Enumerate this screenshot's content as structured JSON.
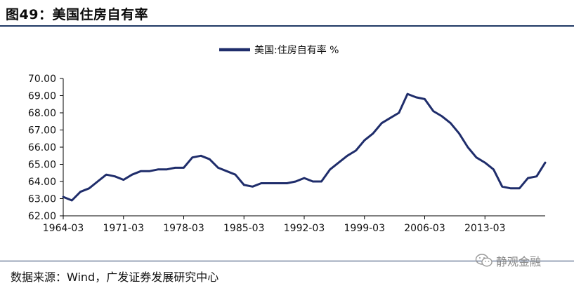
{
  "header": {
    "title": "图49：美国住房自有率"
  },
  "footer": {
    "source": "数据来源：Wind，广发证券发展研究中心",
    "watermark": "静观金融"
  },
  "colors": {
    "series": "#1f2d6b",
    "rule": "#1f3864"
  },
  "chart_data": {
    "type": "line",
    "title": "",
    "xlabel": "",
    "ylabel": "",
    "ylim": [
      62.0,
      70.0
    ],
    "yticks": [
      "62.00",
      "63.00",
      "64.00",
      "65.00",
      "66.00",
      "67.00",
      "68.00",
      "69.00",
      "70.00"
    ],
    "xticks": [
      "1964-03",
      "1971-03",
      "1978-03",
      "1985-03",
      "1992-03",
      "1999-03",
      "2006-03",
      "2013-03"
    ],
    "grid": false,
    "legend_position": "top-center",
    "series": [
      {
        "name": "美国:住房自有率 %",
        "x": [
          "1964-03",
          "1965-03",
          "1966-03",
          "1967-03",
          "1968-03",
          "1969-03",
          "1970-03",
          "1971-03",
          "1972-03",
          "1973-03",
          "1974-03",
          "1975-03",
          "1976-03",
          "1977-03",
          "1978-03",
          "1979-03",
          "1980-03",
          "1981-03",
          "1982-03",
          "1983-03",
          "1984-03",
          "1985-03",
          "1986-03",
          "1987-03",
          "1988-03",
          "1989-03",
          "1990-03",
          "1991-03",
          "1992-03",
          "1993-03",
          "1994-03",
          "1995-03",
          "1996-03",
          "1997-03",
          "1998-03",
          "1999-03",
          "2000-03",
          "2001-03",
          "2002-03",
          "2003-03",
          "2004-03",
          "2005-03",
          "2006-03",
          "2007-03",
          "2008-03",
          "2009-03",
          "2010-03",
          "2011-03",
          "2012-03",
          "2013-03",
          "2014-03",
          "2015-03",
          "2016-03",
          "2017-03",
          "2018-03",
          "2019-03",
          "2020-03"
        ],
        "values": [
          63.1,
          62.9,
          63.4,
          63.6,
          64.0,
          64.4,
          64.3,
          64.1,
          64.4,
          64.6,
          64.6,
          64.7,
          64.7,
          64.8,
          64.8,
          65.4,
          65.5,
          65.3,
          64.8,
          64.6,
          64.4,
          63.8,
          63.7,
          63.9,
          63.9,
          63.9,
          63.9,
          64.0,
          64.2,
          64.0,
          64.0,
          64.7,
          65.1,
          65.5,
          65.8,
          66.4,
          66.8,
          67.4,
          67.7,
          68.0,
          69.1,
          68.9,
          68.8,
          68.1,
          67.8,
          67.4,
          66.8,
          66.0,
          65.4,
          65.1,
          64.7,
          63.7,
          63.6,
          63.6,
          64.2,
          64.3,
          65.1
        ]
      }
    ]
  }
}
